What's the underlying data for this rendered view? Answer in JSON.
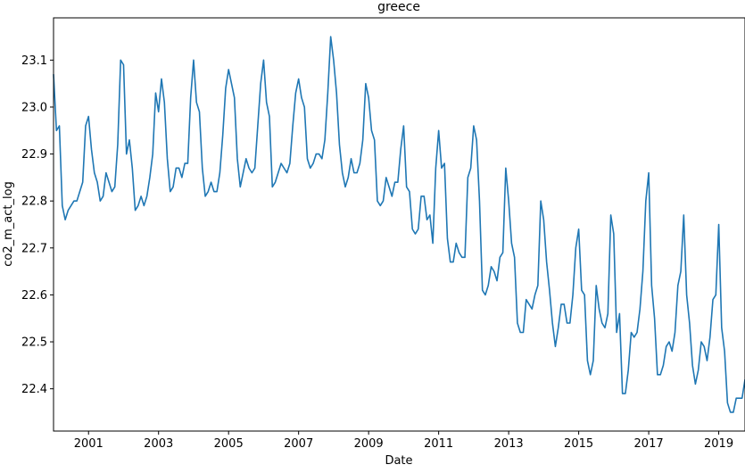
{
  "chart_data": {
    "type": "line",
    "title": "greece",
    "xlabel": "Date",
    "ylabel": "co2_m_act_log",
    "xlim": [
      "2000-01",
      "2019-10"
    ],
    "ylim": [
      22.31,
      23.19
    ],
    "x_ticks": [
      {
        "label": "2001",
        "date": "2001-01"
      },
      {
        "label": "2003",
        "date": "2003-01"
      },
      {
        "label": "2005",
        "date": "2005-01"
      },
      {
        "label": "2007",
        "date": "2007-01"
      },
      {
        "label": "2009",
        "date": "2009-01"
      },
      {
        "label": "2011",
        "date": "2011-01"
      },
      {
        "label": "2013",
        "date": "2013-01"
      },
      {
        "label": "2015",
        "date": "2015-01"
      },
      {
        "label": "2017",
        "date": "2017-01"
      },
      {
        "label": "2019",
        "date": "2019-01"
      }
    ],
    "y_ticks": [
      {
        "label": "22.4",
        "value": 22.4
      },
      {
        "label": "22.5",
        "value": 22.5
      },
      {
        "label": "22.6",
        "value": 22.6
      },
      {
        "label": "22.7",
        "value": 22.7
      },
      {
        "label": "22.8",
        "value": 22.8
      },
      {
        "label": "22.9",
        "value": 22.9
      },
      {
        "label": "23.0",
        "value": 23.0
      },
      {
        "label": "23.1",
        "value": 23.1
      }
    ],
    "grid": false,
    "legend": "none",
    "series": [
      {
        "color": "#1f77b4",
        "x": [
          "2000-01",
          "2000-02",
          "2000-03",
          "2000-04",
          "2000-05",
          "2000-06",
          "2000-07",
          "2000-08",
          "2000-09",
          "2000-10",
          "2000-11",
          "2000-12",
          "2001-01",
          "2001-02",
          "2001-03",
          "2001-04",
          "2001-05",
          "2001-06",
          "2001-07",
          "2001-08",
          "2001-09",
          "2001-10",
          "2001-11",
          "2001-12",
          "2002-01",
          "2002-02",
          "2002-03",
          "2002-04",
          "2002-05",
          "2002-06",
          "2002-07",
          "2002-08",
          "2002-09",
          "2002-10",
          "2002-11",
          "2002-12",
          "2003-01",
          "2003-02",
          "2003-03",
          "2003-04",
          "2003-05",
          "2003-06",
          "2003-07",
          "2003-08",
          "2003-09",
          "2003-10",
          "2003-11",
          "2003-12",
          "2004-01",
          "2004-02",
          "2004-03",
          "2004-04",
          "2004-05",
          "2004-06",
          "2004-07",
          "2004-08",
          "2004-09",
          "2004-10",
          "2004-11",
          "2004-12",
          "2005-01",
          "2005-02",
          "2005-03",
          "2005-04",
          "2005-05",
          "2005-06",
          "2005-07",
          "2005-08",
          "2005-09",
          "2005-10",
          "2005-11",
          "2005-12",
          "2006-01",
          "2006-02",
          "2006-03",
          "2006-04",
          "2006-05",
          "2006-06",
          "2006-07",
          "2006-08",
          "2006-09",
          "2006-10",
          "2006-11",
          "2006-12",
          "2007-01",
          "2007-02",
          "2007-03",
          "2007-04",
          "2007-05",
          "2007-06",
          "2007-07",
          "2007-08",
          "2007-09",
          "2007-10",
          "2007-11",
          "2007-12",
          "2008-01",
          "2008-02",
          "2008-03",
          "2008-04",
          "2008-05",
          "2008-06",
          "2008-07",
          "2008-08",
          "2008-09",
          "2008-10",
          "2008-11",
          "2008-12",
          "2009-01",
          "2009-02",
          "2009-03",
          "2009-04",
          "2009-05",
          "2009-06",
          "2009-07",
          "2009-08",
          "2009-09",
          "2009-10",
          "2009-11",
          "2009-12",
          "2010-01",
          "2010-02",
          "2010-03",
          "2010-04",
          "2010-05",
          "2010-06",
          "2010-07",
          "2010-08",
          "2010-09",
          "2010-10",
          "2010-11",
          "2010-12",
          "2011-01",
          "2011-02",
          "2011-03",
          "2011-04",
          "2011-05",
          "2011-06",
          "2011-07",
          "2011-08",
          "2011-09",
          "2011-10",
          "2011-11",
          "2011-12",
          "2012-01",
          "2012-02",
          "2012-03",
          "2012-04",
          "2012-05",
          "2012-06",
          "2012-07",
          "2012-08",
          "2012-09",
          "2012-10",
          "2012-11",
          "2012-12",
          "2013-01",
          "2013-02",
          "2013-03",
          "2013-04",
          "2013-05",
          "2013-06",
          "2013-07",
          "2013-08",
          "2013-09",
          "2013-10",
          "2013-11",
          "2013-12",
          "2014-01",
          "2014-02",
          "2014-03",
          "2014-04",
          "2014-05",
          "2014-06",
          "2014-07",
          "2014-08",
          "2014-09",
          "2014-10",
          "2014-11",
          "2014-12",
          "2015-01",
          "2015-02",
          "2015-03",
          "2015-04",
          "2015-05",
          "2015-06",
          "2015-07",
          "2015-08",
          "2015-09",
          "2015-10",
          "2015-11",
          "2015-12",
          "2016-01",
          "2016-02",
          "2016-03",
          "2016-04",
          "2016-05",
          "2016-06",
          "2016-07",
          "2016-08",
          "2016-09",
          "2016-10",
          "2016-11",
          "2016-12",
          "2017-01",
          "2017-02",
          "2017-03",
          "2017-04",
          "2017-05",
          "2017-06",
          "2017-07",
          "2017-08",
          "2017-09",
          "2017-10",
          "2017-11",
          "2017-12",
          "2018-01",
          "2018-02",
          "2018-03",
          "2018-04",
          "2018-05",
          "2018-06",
          "2018-07",
          "2018-08",
          "2018-09",
          "2018-10",
          "2018-11",
          "2018-12",
          "2019-01",
          "2019-02",
          "2019-03",
          "2019-04",
          "2019-05",
          "2019-06",
          "2019-07",
          "2019-08",
          "2019-09",
          "2019-10"
        ],
        "values": [
          23.07,
          22.95,
          22.96,
          22.79,
          22.76,
          22.78,
          22.79,
          22.8,
          22.8,
          22.82,
          22.84,
          22.96,
          22.98,
          22.91,
          22.86,
          22.84,
          22.8,
          22.81,
          22.86,
          22.84,
          22.82,
          22.83,
          22.92,
          23.1,
          23.09,
          22.9,
          22.93,
          22.87,
          22.78,
          22.79,
          22.81,
          22.79,
          22.81,
          22.85,
          22.9,
          23.03,
          22.99,
          23.06,
          23.01,
          22.89,
          22.82,
          22.83,
          22.87,
          22.87,
          22.85,
          22.88,
          22.88,
          23.02,
          23.1,
          23.01,
          22.99,
          22.87,
          22.81,
          22.82,
          22.84,
          22.82,
          22.82,
          22.86,
          22.94,
          23.04,
          23.08,
          23.05,
          23.02,
          22.89,
          22.83,
          22.86,
          22.89,
          22.87,
          22.86,
          22.87,
          22.96,
          23.05,
          23.1,
          23.01,
          22.98,
          22.83,
          22.84,
          22.86,
          22.88,
          22.87,
          22.86,
          22.88,
          22.96,
          23.03,
          23.06,
          23.02,
          23.0,
          22.89,
          22.87,
          22.88,
          22.9,
          22.9,
          22.89,
          22.93,
          23.03,
          23.15,
          23.1,
          23.03,
          22.92,
          22.86,
          22.83,
          22.85,
          22.89,
          22.86,
          22.86,
          22.88,
          22.93,
          23.05,
          23.02,
          22.95,
          22.93,
          22.8,
          22.79,
          22.8,
          22.85,
          22.83,
          22.81,
          22.84,
          22.84,
          22.91,
          22.96,
          22.83,
          22.82,
          22.74,
          22.73,
          22.74,
          22.81,
          22.81,
          22.76,
          22.77,
          22.71,
          22.87,
          22.95,
          22.87,
          22.88,
          22.72,
          22.67,
          22.67,
          22.71,
          22.69,
          22.68,
          22.68,
          22.85,
          22.87,
          22.96,
          22.93,
          22.8,
          22.61,
          22.6,
          22.62,
          22.66,
          22.65,
          22.63,
          22.68,
          22.69,
          22.87,
          22.8,
          22.71,
          22.68,
          22.54,
          22.52,
          22.52,
          22.59,
          22.58,
          22.57,
          22.6,
          22.62,
          22.8,
          22.76,
          22.67,
          22.61,
          22.54,
          22.49,
          22.53,
          22.58,
          22.58,
          22.54,
          22.54,
          22.6,
          22.7,
          22.74,
          22.61,
          22.6,
          22.46,
          22.43,
          22.46,
          22.62,
          22.57,
          22.54,
          22.53,
          22.56,
          22.77,
          22.73,
          22.52,
          22.56,
          22.39,
          22.39,
          22.44,
          22.52,
          22.51,
          22.52,
          22.57,
          22.65,
          22.8,
          22.86,
          22.62,
          22.55,
          22.43,
          22.43,
          22.45,
          22.49,
          22.5,
          22.48,
          22.52,
          22.62,
          22.65,
          22.77,
          22.6,
          22.54,
          22.45,
          22.41,
          22.44,
          22.5,
          22.49,
          22.46,
          22.51,
          22.59,
          22.6,
          22.75,
          22.53,
          22.48,
          22.37,
          22.35,
          22.35,
          22.38,
          22.38,
          22.38,
          22.42
        ]
      }
    ]
  }
}
